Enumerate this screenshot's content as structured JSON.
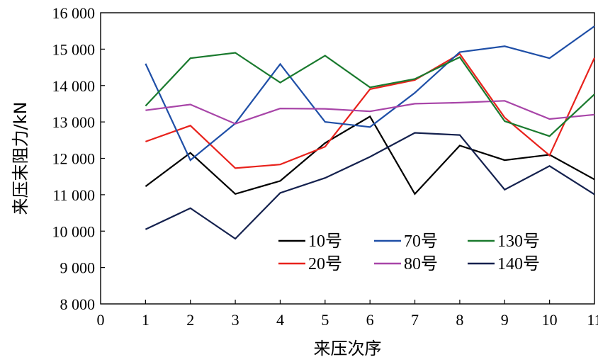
{
  "chart_data": {
    "type": "line",
    "title": "",
    "xlabel": "来压次序",
    "ylabel": "来压末阻力/kN",
    "xlim": [
      0,
      11
    ],
    "ylim": [
      8000,
      16000
    ],
    "x_ticks": [
      {
        "value": 0,
        "label": "0"
      },
      {
        "value": 1,
        "label": "1"
      },
      {
        "value": 2,
        "label": "2"
      },
      {
        "value": 3,
        "label": "3"
      },
      {
        "value": 4,
        "label": "4"
      },
      {
        "value": 5,
        "label": "5"
      },
      {
        "value": 6,
        "label": "6"
      },
      {
        "value": 7,
        "label": "7"
      },
      {
        "value": 8,
        "label": "8"
      },
      {
        "value": 9,
        "label": "9"
      },
      {
        "value": 10,
        "label": "10"
      },
      {
        "value": 11,
        "label": "11"
      }
    ],
    "y_ticks": [
      {
        "value": 8000,
        "label": "8 000"
      },
      {
        "value": 9000,
        "label": "9 000"
      },
      {
        "value": 10000,
        "label": "10 000"
      },
      {
        "value": 11000,
        "label": "11 000"
      },
      {
        "value": 12000,
        "label": "12 000"
      },
      {
        "value": 13000,
        "label": "13 000"
      },
      {
        "value": 14000,
        "label": "14 000"
      },
      {
        "value": 15000,
        "label": "15 000"
      },
      {
        "value": 16000,
        "label": "16 000"
      }
    ],
    "grid": false,
    "legend_position": "bottom-right",
    "x": [
      1,
      2,
      3,
      4,
      5,
      6,
      7,
      8,
      9,
      10,
      11
    ],
    "series": [
      {
        "name": "10号",
        "color": "#000000",
        "values": [
          11230,
          12150,
          11020,
          11380,
          12420,
          13150,
          11020,
          12350,
          11950,
          12100,
          11420
        ]
      },
      {
        "name": "20号",
        "color": "#e8221c",
        "values": [
          12460,
          12900,
          11730,
          11830,
          12320,
          13900,
          14150,
          14870,
          13120,
          12080,
          14760
        ]
      },
      {
        "name": "70号",
        "color": "#1f4fa7",
        "values": [
          14600,
          11950,
          12960,
          14590,
          13000,
          12860,
          13800,
          14920,
          15080,
          14750,
          15630
        ]
      },
      {
        "name": "80号",
        "color": "#a845a8",
        "values": [
          13320,
          13480,
          12950,
          13370,
          13360,
          13290,
          13500,
          13530,
          13580,
          13080,
          13200
        ]
      },
      {
        "name": "130号",
        "color": "#1a7a2e",
        "values": [
          13440,
          14750,
          14900,
          14080,
          14820,
          13950,
          14180,
          14780,
          13020,
          12610,
          13760
        ]
      },
      {
        "name": "140号",
        "color": "#14214e",
        "values": [
          10050,
          10630,
          9790,
          11050,
          11460,
          12040,
          12700,
          12640,
          11140,
          11790,
          11010
        ]
      }
    ]
  }
}
